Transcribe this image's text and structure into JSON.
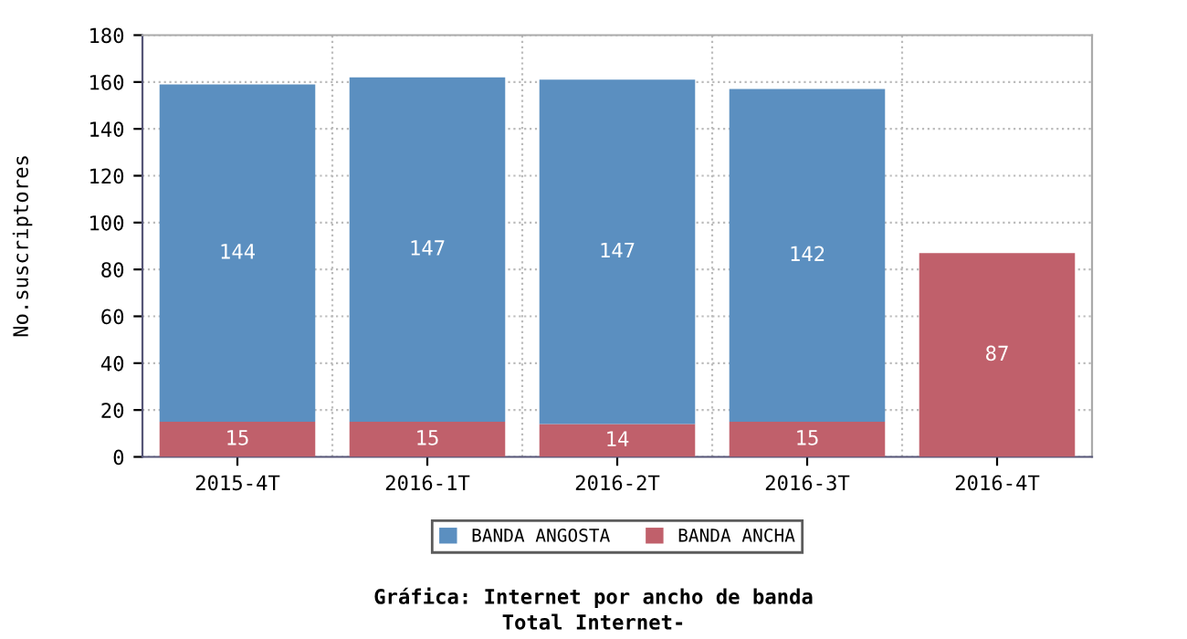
{
  "chart_data": {
    "type": "bar",
    "title": "Gráfica: Internet por ancho de banda",
    "subtitle": "Total Internet-",
    "ylabel": "No.suscriptores",
    "categories": [
      "2015-4T",
      "2016-1T",
      "2016-2T",
      "2016-3T",
      "2016-4T"
    ],
    "series": [
      {
        "name": "BANDA ANCHA",
        "color": "#c0606b",
        "values": [
          15,
          15,
          14,
          15,
          87
        ]
      },
      {
        "name": "BANDA ANGOSTA",
        "color": "#5b8fc0",
        "values": [
          144,
          147,
          147,
          142,
          null
        ]
      }
    ],
    "stacked": true,
    "data_labels": true,
    "ylim": [
      0,
      180
    ],
    "yticks": [
      0,
      20,
      40,
      60,
      80,
      100,
      120,
      140,
      160,
      180
    ],
    "grid": true,
    "legend": "bottom"
  }
}
